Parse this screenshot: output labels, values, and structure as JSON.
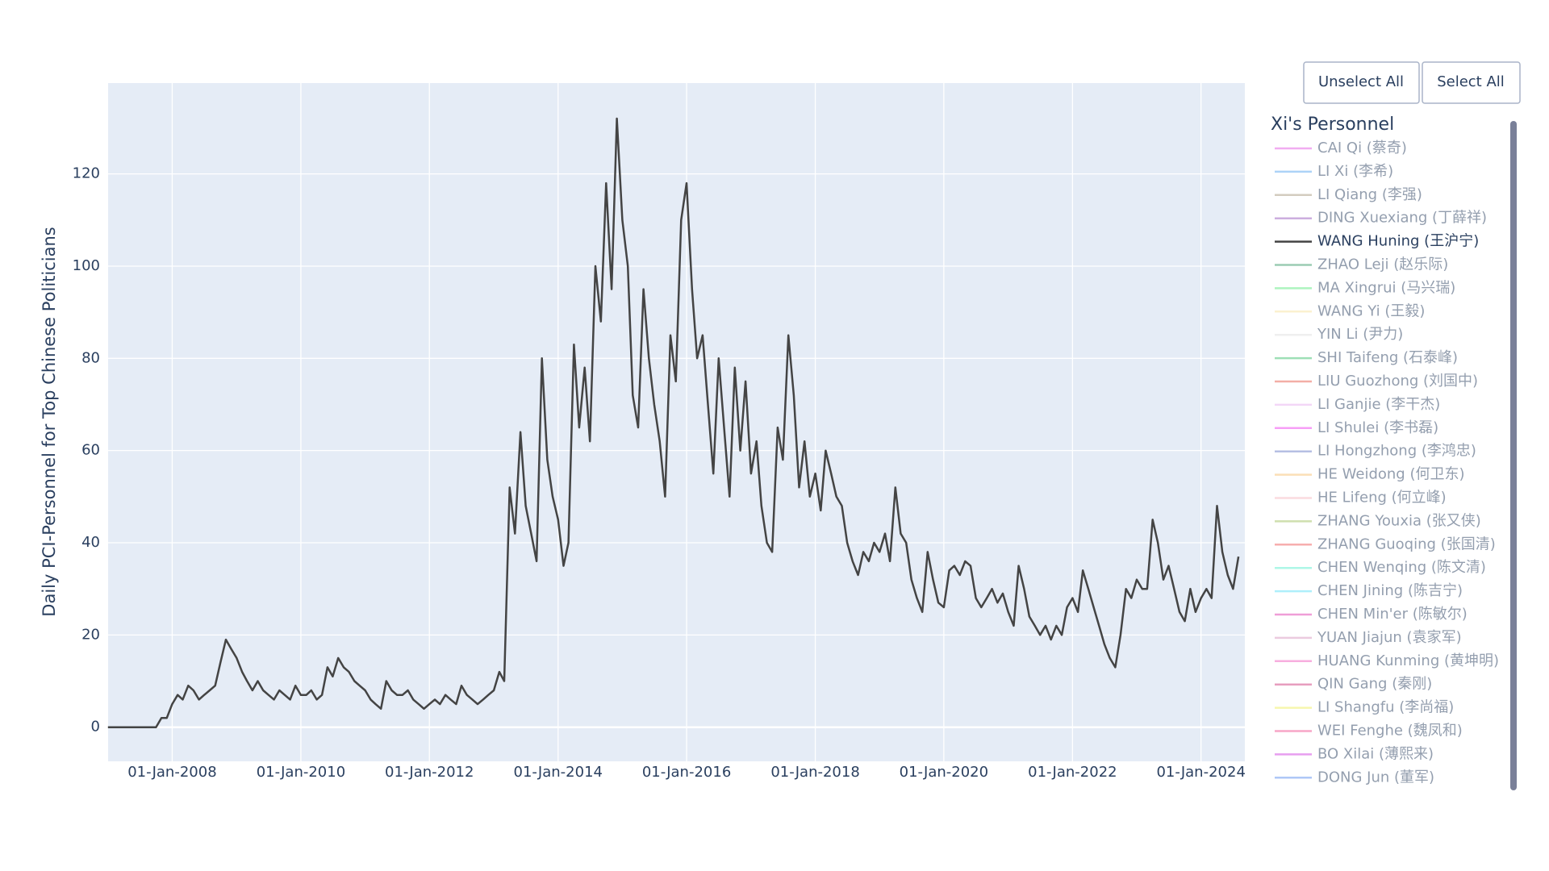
{
  "chart_data": {
    "type": "line",
    "ylabel": "Daily PCI-Personnel for Top Chinese Politicians",
    "legend_title": "Xi's Personnel",
    "buttons": [
      "Unselect All",
      "Select All"
    ],
    "xlim": [
      "2007-01-02",
      "2024-09-06"
    ],
    "xticks": [
      {
        "value": "2008-01-01",
        "label": "01-Jan-2008"
      },
      {
        "value": "2010-01-01",
        "label": "01-Jan-2010"
      },
      {
        "value": "2012-01-01",
        "label": "01-Jan-2012"
      },
      {
        "value": "2014-01-01",
        "label": "01-Jan-2014"
      },
      {
        "value": "2016-01-01",
        "label": "01-Jan-2016"
      },
      {
        "value": "2018-01-01",
        "label": "01-Jan-2018"
      },
      {
        "value": "2020-01-01",
        "label": "01-Jan-2020"
      },
      {
        "value": "2022-01-01",
        "label": "01-Jan-2022"
      },
      {
        "value": "2024-01-01",
        "label": "01-Jan-2024"
      }
    ],
    "ylim": [
      -7.4,
      139.7
    ],
    "yticks": [
      0,
      20,
      40,
      60,
      80,
      100,
      120
    ],
    "grid": true,
    "legend_position": "right",
    "x": [
      "2007-01-01",
      "2007-02-01",
      "2007-03-01",
      "2007-04-01",
      "2007-05-01",
      "2007-06-01",
      "2007-07-01",
      "2007-08-01",
      "2007-09-01",
      "2007-10-01",
      "2007-11-01",
      "2007-12-01",
      "2008-01-01",
      "2008-02-01",
      "2008-03-01",
      "2008-04-01",
      "2008-05-01",
      "2008-06-01",
      "2008-07-01",
      "2008-08-01",
      "2008-09-01",
      "2008-10-01",
      "2008-11-01",
      "2008-12-01",
      "2009-01-01",
      "2009-02-01",
      "2009-03-01",
      "2009-04-01",
      "2009-05-01",
      "2009-06-01",
      "2009-07-01",
      "2009-08-01",
      "2009-09-01",
      "2009-10-01",
      "2009-11-01",
      "2009-12-01",
      "2010-01-01",
      "2010-02-01",
      "2010-03-01",
      "2010-04-01",
      "2010-05-01",
      "2010-06-01",
      "2010-07-01",
      "2010-08-01",
      "2010-09-01",
      "2010-10-01",
      "2010-11-01",
      "2010-12-01",
      "2011-01-01",
      "2011-02-01",
      "2011-03-01",
      "2011-04-01",
      "2011-05-01",
      "2011-06-01",
      "2011-07-01",
      "2011-08-01",
      "2011-09-01",
      "2011-10-01",
      "2011-11-01",
      "2011-12-01",
      "2012-01-01",
      "2012-02-01",
      "2012-03-01",
      "2012-04-01",
      "2012-05-01",
      "2012-06-01",
      "2012-07-01",
      "2012-08-01",
      "2012-09-01",
      "2012-10-01",
      "2012-11-01",
      "2012-12-01",
      "2013-01-01",
      "2013-02-01",
      "2013-03-01",
      "2013-04-01",
      "2013-05-01",
      "2013-06-01",
      "2013-07-01",
      "2013-08-01",
      "2013-09-01",
      "2013-10-01",
      "2013-11-01",
      "2013-12-01",
      "2014-01-01",
      "2014-02-01",
      "2014-03-01",
      "2014-04-01",
      "2014-05-01",
      "2014-06-01",
      "2014-07-01",
      "2014-08-01",
      "2014-09-01",
      "2014-10-01",
      "2014-11-01",
      "2014-12-01",
      "2015-01-01",
      "2015-02-01",
      "2015-03-01",
      "2015-04-01",
      "2015-05-01",
      "2015-06-01",
      "2015-07-01",
      "2015-08-01",
      "2015-09-01",
      "2015-10-01",
      "2015-11-01",
      "2015-12-01",
      "2016-01-01",
      "2016-02-01",
      "2016-03-01",
      "2016-04-01",
      "2016-05-01",
      "2016-06-01",
      "2016-07-01",
      "2016-08-01",
      "2016-09-01",
      "2016-10-01",
      "2016-11-01",
      "2016-12-01",
      "2017-01-01",
      "2017-02-01",
      "2017-03-01",
      "2017-04-01",
      "2017-05-01",
      "2017-06-01",
      "2017-07-01",
      "2017-08-01",
      "2017-09-01",
      "2017-10-01",
      "2017-11-01",
      "2017-12-01",
      "2018-01-01",
      "2018-02-01",
      "2018-03-01",
      "2018-04-01",
      "2018-05-01",
      "2018-06-01",
      "2018-07-01",
      "2018-08-01",
      "2018-09-01",
      "2018-10-01",
      "2018-11-01",
      "2018-12-01",
      "2019-01-01",
      "2019-02-01",
      "2019-03-01",
      "2019-04-01",
      "2019-05-01",
      "2019-06-01",
      "2019-07-01",
      "2019-08-01",
      "2019-09-01",
      "2019-10-01",
      "2019-11-01",
      "2019-12-01",
      "2020-01-01",
      "2020-02-01",
      "2020-03-01",
      "2020-04-01",
      "2020-05-01",
      "2020-06-01",
      "2020-07-01",
      "2020-08-01",
      "2020-09-01",
      "2020-10-01",
      "2020-11-01",
      "2020-12-01",
      "2021-01-01",
      "2021-02-01",
      "2021-03-01",
      "2021-04-01",
      "2021-05-01",
      "2021-06-01",
      "2021-07-01",
      "2021-08-01",
      "2021-09-01",
      "2021-10-01",
      "2021-11-01",
      "2021-12-01",
      "2022-01-01",
      "2022-02-01",
      "2022-03-01",
      "2022-04-01",
      "2022-05-01",
      "2022-06-01",
      "2022-07-01",
      "2022-08-01",
      "2022-09-01",
      "2022-10-01",
      "2022-11-01",
      "2022-12-01",
      "2023-01-01",
      "2023-02-01",
      "2023-03-01",
      "2023-04-01",
      "2023-05-01",
      "2023-06-01",
      "2023-07-01",
      "2023-08-01",
      "2023-09-01",
      "2023-10-01",
      "2023-11-01",
      "2023-12-01",
      "2024-01-01",
      "2024-02-01",
      "2024-03-01",
      "2024-04-01",
      "2024-05-01",
      "2024-06-01",
      "2024-07-01",
      "2024-08-01"
    ],
    "series": [
      {
        "name": "CAI Qi (蔡奇)",
        "color": "#e45ee4",
        "visible": "legendonly"
      },
      {
        "name": "LI Xi (李希)",
        "color": "#5ea8f0",
        "visible": "legendonly"
      },
      {
        "name": "LI Qiang (李强)",
        "color": "#a89a80",
        "visible": "legendonly"
      },
      {
        "name": "DING Xuexiang (丁薛祥)",
        "color": "#9a60c0",
        "visible": "legendonly"
      },
      {
        "name": "WANG Huning (王沪宁)",
        "color": "#444444",
        "visible": true,
        "values": [
          0,
          0,
          0,
          0,
          0,
          0,
          0,
          0,
          0,
          0,
          2,
          2,
          5,
          7,
          6,
          9,
          8,
          6,
          7,
          8,
          9,
          14,
          19,
          17,
          15,
          12,
          10,
          8,
          10,
          8,
          7,
          6,
          8,
          7,
          6,
          9,
          7,
          7,
          8,
          6,
          7,
          13,
          11,
          15,
          13,
          12,
          10,
          9,
          8,
          6,
          5,
          4,
          10,
          8,
          7,
          7,
          8,
          6,
          5,
          4,
          5,
          6,
          5,
          7,
          6,
          5,
          9,
          7,
          6,
          5,
          6,
          7,
          8,
          12,
          10,
          52,
          42,
          64,
          48,
          42,
          36,
          80,
          58,
          50,
          45,
          35,
          40,
          83,
          65,
          78,
          62,
          100,
          88,
          118,
          95,
          132,
          110,
          100,
          72,
          65,
          95,
          80,
          70,
          62,
          50,
          85,
          75,
          110,
          118,
          95,
          80,
          85,
          70,
          55,
          80,
          65,
          50,
          78,
          60,
          75,
          55,
          62,
          48,
          40,
          38,
          65,
          58,
          85,
          72,
          52,
          62,
          50,
          55,
          47,
          60,
          55,
          50,
          48,
          40,
          36,
          33,
          38,
          36,
          40,
          38,
          42,
          36,
          52,
          42,
          40,
          32,
          28,
          25,
          38,
          32,
          27,
          26,
          34,
          35,
          33,
          36,
          35,
          28,
          26,
          28,
          30,
          27,
          29,
          25,
          22,
          35,
          30,
          24,
          22,
          20,
          22,
          19,
          22,
          20,
          26,
          28,
          25,
          34,
          30,
          26,
          22,
          18,
          15,
          13,
          20,
          30,
          28,
          32,
          30,
          30,
          45,
          40,
          32,
          35,
          30,
          25,
          23,
          30,
          25,
          28,
          30,
          28,
          48,
          38,
          33,
          30,
          37
        ]
      },
      {
        "name": "ZHAO Leji (赵乐际)",
        "color": "#3a9a6a",
        "visible": "legendonly"
      },
      {
        "name": "MA Xingrui (马兴瑞)",
        "color": "#5eea80",
        "visible": "legendonly"
      },
      {
        "name": "WANG Yi (王毅)",
        "color": "#f8e4a0",
        "visible": "legendonly"
      },
      {
        "name": "YIN Li (尹力)",
        "color": "#e0e0e0",
        "visible": "legendonly"
      },
      {
        "name": "SHI Taifeng (石泰峰)",
        "color": "#40c070",
        "visible": "legendonly"
      },
      {
        "name": "LIU Guozhong (刘国中)",
        "color": "#e86050",
        "visible": "legendonly"
      },
      {
        "name": "LI Ganjie (李干杰)",
        "color": "#e8b0f0",
        "visible": "legendonly"
      },
      {
        "name": "LI Shulei (李书磊)",
        "color": "#f040f0",
        "visible": "legendonly"
      },
      {
        "name": "LI Hongzhong (李鸿忠)",
        "color": "#7080c8",
        "visible": "legendonly"
      },
      {
        "name": "HE Weidong (何卫东)",
        "color": "#f8c070",
        "visible": "legendonly"
      },
      {
        "name": "HE Lifeng (何立峰)",
        "color": "#f8b8c0",
        "visible": "legendonly"
      },
      {
        "name": "ZHANG Youxia (张又侠)",
        "color": "#a0c060",
        "visible": "legendonly"
      },
      {
        "name": "ZHANG Guoqing (张国清)",
        "color": "#f06060",
        "visible": "legendonly"
      },
      {
        "name": "CHEN Wenqing (陈文清)",
        "color": "#60f0d0",
        "visible": "legendonly"
      },
      {
        "name": "CHEN Jining (陈吉宁)",
        "color": "#60e0f8",
        "visible": "legendonly"
      },
      {
        "name": "CHEN Min'er (陈敏尔)",
        "color": "#e040b0",
        "visible": "legendonly"
      },
      {
        "name": "YUAN Jiajun (袁家军)",
        "color": "#d898c0",
        "visible": "legendonly"
      },
      {
        "name": "HUANG Kunming (黄坤明)",
        "color": "#f060c0",
        "visible": "legendonly"
      },
      {
        "name": "QIN Gang (秦刚)",
        "color": "#d04080",
        "visible": "legendonly"
      },
      {
        "name": "LI Shangfu (李尚福)",
        "color": "#f0f060",
        "visible": "legendonly"
      },
      {
        "name": "WEI Fenghe (魏凤和)",
        "color": "#f05090",
        "visible": "legendonly"
      },
      {
        "name": "BO Xilai (薄熙来)",
        "color": "#d040e0",
        "visible": "legendonly"
      },
      {
        "name": "DONG Jun (董军)",
        "color": "#6090f0",
        "visible": "legendonly"
      }
    ]
  }
}
